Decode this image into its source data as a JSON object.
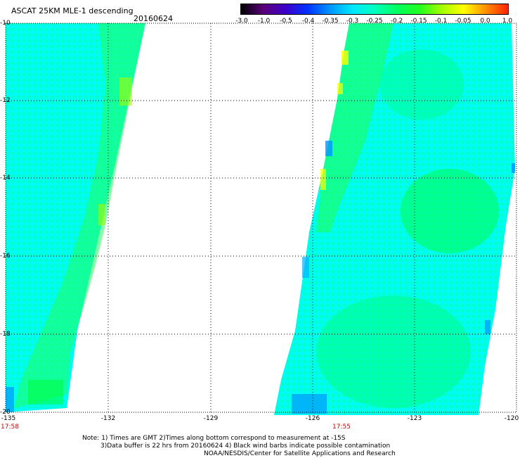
{
  "title": "ASCAT 25KM MLE-1 descending",
  "date": "20160624",
  "colorbar": {
    "ticks": [
      "-3.0",
      "-1.0",
      "-0.5",
      "-0.4",
      "-0.35",
      "-0.3",
      "-0.25",
      "-0.2",
      "-0.15",
      "-0.1",
      "-0.05",
      "0.0",
      "1.0"
    ],
    "colors": [
      "#000000",
      "#5a007a",
      "#3d00c8",
      "#0032ff",
      "#0096ff",
      "#00e6ff",
      "#00ffc0",
      "#00ff60",
      "#20ff20",
      "#a0ff00",
      "#ffff00",
      "#ff9000",
      "#ff2000"
    ]
  },
  "latitude_labels": [
    "-10",
    "-12",
    "-14",
    "-16",
    "-18",
    "-20"
  ],
  "longitude_labels": [
    "-135",
    "-132",
    "-129",
    "-126",
    "-123",
    "-120"
  ],
  "pass_times": [
    "17:58",
    "17:55"
  ],
  "notes": [
    "Note: 1) Times are GMT 2)Times along bottom correspond to measurement at -15S",
    "3)Data buffer is 22 hrs from 20160624 4) Black wind barbs indicate possible contamination",
    "NOAA/NESDIS/Center for Satellite Applications and Research"
  ],
  "colors": {
    "swath_base": "#00ffdc",
    "swath_green": "#00ff60",
    "grid": "#000000",
    "time_label": "#cc0000"
  }
}
